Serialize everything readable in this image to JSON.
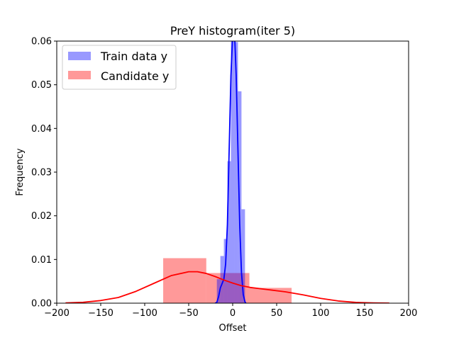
{
  "chart_data": {
    "type": "bar",
    "title": "PreY histogram(iter 5)",
    "xlabel": "Offset",
    "ylabel": "Frequency",
    "xlim": [
      -200,
      200
    ],
    "ylim": [
      0,
      0.06
    ],
    "xticks": [
      -200,
      -150,
      -100,
      -50,
      0,
      50,
      100,
      150,
      200
    ],
    "xtick_labels": [
      "−200",
      "−150",
      "−100",
      "−50",
      "0",
      "50",
      "100",
      "150",
      "200"
    ],
    "yticks": [
      0,
      0.01,
      0.02,
      0.03,
      0.04,
      0.05,
      0.06
    ],
    "ytick_labels": [
      "0.00",
      "0.01",
      "0.02",
      "0.03",
      "0.04",
      "0.05",
      "0.06"
    ],
    "grid": false,
    "legend_position": "top-left",
    "series": [
      {
        "name": "Train data y",
        "color": "#0000ff",
        "histogram": [
          {
            "x0": -18,
            "x1": -14,
            "y": 0.0055
          },
          {
            "x0": -14,
            "x1": -10,
            "y": 0.0108
          },
          {
            "x0": -10,
            "x1": -6,
            "y": 0.0147
          },
          {
            "x0": -6,
            "x1": -2,
            "y": 0.0325
          },
          {
            "x0": -2,
            "x1": 2,
            "y": 0.067
          },
          {
            "x0": 2,
            "x1": 6,
            "y": 0.0598
          },
          {
            "x0": 6,
            "x1": 10,
            "y": 0.0485
          },
          {
            "x0": 10,
            "x1": 14,
            "y": 0.0215
          }
        ],
        "kde": {
          "x": [
            -20,
            -18,
            -16,
            -14,
            -12,
            -10,
            -8,
            -6,
            -4,
            -2,
            0,
            2,
            4,
            6,
            8,
            10,
            12,
            14,
            15
          ],
          "y": [
            0,
            0.0002,
            0.0015,
            0.0035,
            0.0045,
            0.0055,
            0.009,
            0.018,
            0.035,
            0.052,
            0.0615,
            0.0625,
            0.052,
            0.035,
            0.018,
            0.007,
            0.002,
            0.0003,
            0
          ]
        }
      },
      {
        "name": "Candidate y",
        "color": "#ff0000",
        "histogram": [
          {
            "x0": -79,
            "x1": -30,
            "y": 0.0103
          },
          {
            "x0": -30,
            "x1": 19,
            "y": 0.0069
          },
          {
            "x0": 19,
            "x1": 67,
            "y": 0.0035
          }
        ],
        "kde": {
          "x": [
            -190,
            -170,
            -150,
            -130,
            -110,
            -90,
            -70,
            -50,
            -40,
            -30,
            -20,
            -10,
            0,
            10,
            20,
            40,
            60,
            80,
            100,
            120,
            140,
            160,
            178
          ],
          "y": [
            5e-05,
            0.0002,
            0.0006,
            0.0013,
            0.0027,
            0.0045,
            0.0063,
            0.0072,
            0.0072,
            0.0068,
            0.0061,
            0.0053,
            0.0046,
            0.004,
            0.0036,
            0.0031,
            0.0026,
            0.0019,
            0.0011,
            0.0005,
            0.00018,
            5e-05,
            1e-05
          ]
        }
      }
    ]
  }
}
